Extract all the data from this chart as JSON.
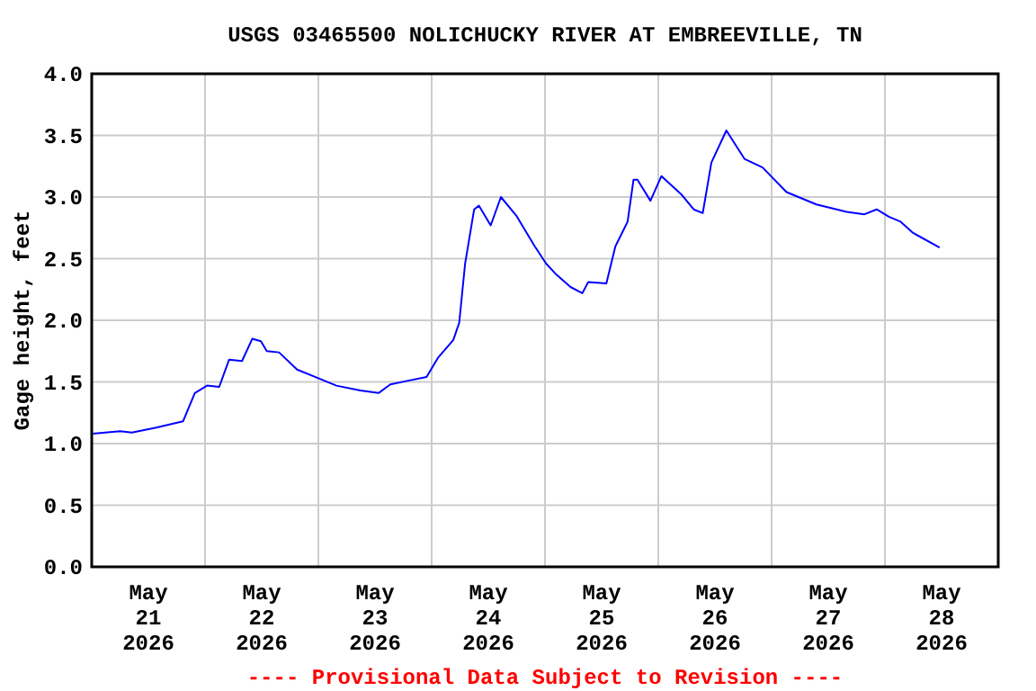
{
  "chart_data": {
    "type": "line",
    "title": "USGS 03465500 NOLICHUCKY RIVER AT EMBREEVILLE, TN",
    "ylabel": "Gage height, feet",
    "annotations": [
      "---- Provisional Data Subject to Revision ----"
    ],
    "x": [
      "2026-05-21T00:15",
      "2026-05-21T06:00",
      "2026-05-21T08:30",
      "2026-05-21T13:40",
      "2026-05-21T19:20",
      "2026-05-21T21:50",
      "2026-05-22T00:25",
      "2026-05-22T03:00",
      "2026-05-22T05:05",
      "2026-05-22T07:50",
      "2026-05-22T10:00",
      "2026-05-22T11:50",
      "2026-05-22T13:05",
      "2026-05-22T15:40",
      "2026-05-22T19:30",
      "2026-05-23T00:00",
      "2026-05-23T03:50",
      "2026-05-23T08:55",
      "2026-05-23T12:45",
      "2026-05-23T15:15",
      "2026-05-23T19:00",
      "2026-05-23T22:55",
      "2026-05-24T01:25",
      "2026-05-24T04:35",
      "2026-05-24T05:50",
      "2026-05-24T07:05",
      "2026-05-24T09:00",
      "2026-05-24T10:00",
      "2026-05-24T12:30",
      "2026-05-24T14:40",
      "2026-05-24T17:55",
      "2026-05-24T21:50",
      "2026-05-25T00:15",
      "2026-05-25T02:10",
      "2026-05-25T05:25",
      "2026-05-25T07:55",
      "2026-05-25T09:10",
      "2026-05-25T13:00",
      "2026-05-25T14:55",
      "2026-05-25T17:30",
      "2026-05-25T18:45",
      "2026-05-25T19:35",
      "2026-05-25T22:20",
      "2026-05-26T00:40",
      "2026-05-26T04:55",
      "2026-05-26T07:30",
      "2026-05-26T09:25",
      "2026-05-26T11:15",
      "2026-05-26T14:25",
      "2026-05-26T18:15",
      "2026-05-26T22:05",
      "2026-05-27T03:10",
      "2026-05-27T09:30",
      "2026-05-27T15:55",
      "2026-05-27T19:40",
      "2026-05-27T22:15",
      "2026-05-28T00:50",
      "2026-05-28T03:20",
      "2026-05-28T05:55",
      "2026-05-28T11:35"
    ],
    "series": [
      {
        "color": "#0000ff",
        "values": [
          1.08,
          1.1,
          1.09,
          1.13,
          1.18,
          1.41,
          1.47,
          1.46,
          1.68,
          1.67,
          1.85,
          1.83,
          1.75,
          1.74,
          1.6,
          1.53,
          1.47,
          1.43,
          1.41,
          1.48,
          1.51,
          1.54,
          1.7,
          1.84,
          1.98,
          2.46,
          2.9,
          2.93,
          2.77,
          3.0,
          2.85,
          2.6,
          2.46,
          2.38,
          2.27,
          2.22,
          2.31,
          2.3,
          2.6,
          2.8,
          3.14,
          3.14,
          2.97,
          3.17,
          3.02,
          2.9,
          2.87,
          3.28,
          3.54,
          3.31,
          3.24,
          3.04,
          2.94,
          2.88,
          2.86,
          2.9,
          2.84,
          2.8,
          2.71,
          2.59
        ]
      }
    ],
    "xlim": [
      "2026-05-21",
      "2026-05-29"
    ],
    "xticks": [
      {
        "value": "2026-05-21T12:00",
        "label": "May\n21\n2026"
      },
      {
        "value": "2026-05-22",
        "label": null
      },
      {
        "value": "2026-05-22T12:00",
        "label": "May\n22\n2026"
      },
      {
        "value": "2026-05-23",
        "label": null
      },
      {
        "value": "2026-05-23T12:00",
        "label": "May\n23\n2026"
      },
      {
        "value": "2026-05-24",
        "label": null
      },
      {
        "value": "2026-05-24T12:00",
        "label": "May\n24\n2026"
      },
      {
        "value": "2026-05-25",
        "label": null
      },
      {
        "value": "2026-05-25T12:00",
        "label": "May\n25\n2026"
      },
      {
        "value": "2026-05-26",
        "label": null
      },
      {
        "value": "2026-05-26T12:00",
        "label": "May\n26\n2026"
      },
      {
        "value": "2026-05-27",
        "label": null
      },
      {
        "value": "2026-05-27T12:00",
        "label": "May\n27\n2026"
      },
      {
        "value": "2026-05-28",
        "label": null
      },
      {
        "value": "2026-05-28T12:00",
        "label": "May\n28\n2026"
      }
    ],
    "ylim": [
      0,
      4
    ],
    "yticks": [
      {
        "value": 0,
        "label": "0.0"
      },
      {
        "value": 0.5,
        "label": "0.5"
      },
      {
        "value": 1,
        "label": "1.0"
      },
      {
        "value": 1.5,
        "label": "1.5"
      },
      {
        "value": 2,
        "label": "2.0"
      },
      {
        "value": 2.5,
        "label": "2.5"
      },
      {
        "value": 3,
        "label": "3.0"
      },
      {
        "value": 3.5,
        "label": "3.5"
      },
      {
        "value": 4,
        "label": "4.0"
      }
    ],
    "grid": true,
    "line_style": "solid",
    "marker": "none"
  }
}
